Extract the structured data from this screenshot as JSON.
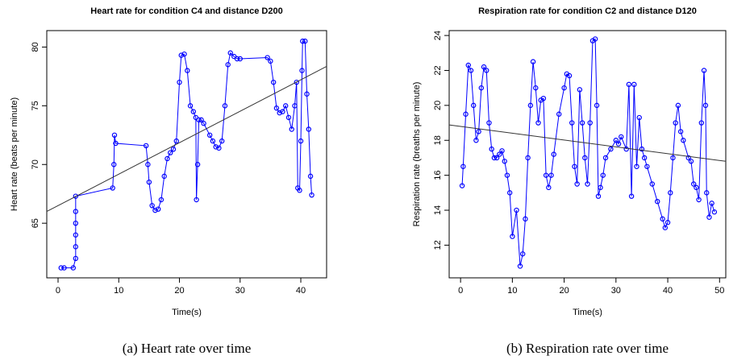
{
  "chart_data": [
    {
      "type": "scatter",
      "title": "Heart rate for condition C4 and distance D200",
      "x_label": "Time(s)",
      "y_label": "Heart rate (beats per minute)",
      "caption": "(a) Heart rate over time",
      "color": "#0000ff",
      "connect": true,
      "x": [
        0.5,
        1,
        2.5,
        2.9,
        2.9,
        2.9,
        2.9,
        2.9,
        2.9,
        9,
        9.2,
        9.3,
        9.5,
        14.5,
        14.8,
        15,
        15.5,
        16,
        16.5,
        17,
        17.5,
        18,
        18.5,
        19,
        19.5,
        20,
        20.3,
        20.8,
        21.3,
        21.8,
        22.3,
        22.7,
        22.8,
        23,
        23.2,
        23.6,
        24,
        25,
        25.5,
        26,
        26.5,
        27,
        27.5,
        28,
        28.4,
        29,
        29.5,
        30,
        34.5,
        35,
        35.5,
        36,
        36.5,
        37,
        37.5,
        38,
        38.5,
        39,
        39.3,
        39.5,
        39.8,
        40,
        40.2,
        40.3,
        40.7,
        41,
        41.3,
        41.6,
        41.8
      ],
      "y": [
        61.2,
        61.2,
        61.2,
        62,
        63,
        64,
        65,
        66,
        67.3,
        68,
        70,
        72.5,
        71.8,
        71.6,
        70,
        68.5,
        66.5,
        66.1,
        66.2,
        67,
        69,
        70.5,
        71,
        71.3,
        72,
        77,
        79.3,
        79.4,
        78,
        75,
        74.5,
        74,
        67,
        70,
        73.8,
        73.8,
        73.5,
        72.5,
        72,
        71.5,
        71.4,
        72,
        75,
        78.5,
        79.5,
        79.2,
        79,
        79,
        79.1,
        78.8,
        77,
        74.8,
        74.4,
        74.5,
        75,
        74,
        73,
        75,
        77,
        68,
        67.8,
        72,
        78,
        80.5,
        80.5,
        76,
        73,
        69,
        67.4
      ],
      "trend": {
        "x": [
          -1.86,
          44.25
        ],
        "y": [
          66.0,
          78.35
        ]
      },
      "xlim": [
        -1.86,
        44.25
      ],
      "ylim": [
        60.35,
        81.4
      ],
      "xticks": [
        0,
        10,
        20,
        30,
        40
      ],
      "yticks": [
        65,
        70,
        75,
        80
      ]
    },
    {
      "type": "scatter",
      "title": "Respiration rate for condition C2 and distance D120",
      "x_label": "Time(s)",
      "y_label": "Respiration rate (breaths per minute)",
      "caption": "(b) Respiration rate over time",
      "color": "#0000ff",
      "connect": true,
      "x": [
        0.3,
        0.5,
        1,
        1.5,
        2,
        2.5,
        3,
        3.5,
        4,
        4.5,
        5,
        5.5,
        6,
        6.5,
        7,
        7.5,
        8,
        8.5,
        9,
        9.5,
        10,
        10.8,
        11.5,
        12,
        12.5,
        13,
        13.5,
        14,
        14.5,
        15,
        15.5,
        16,
        16.5,
        17,
        17.5,
        18,
        19,
        20,
        20.5,
        21,
        21.5,
        22,
        22.5,
        23,
        23.5,
        24,
        24.5,
        25,
        25.5,
        26,
        26.3,
        26.6,
        27,
        27.5,
        28,
        29,
        30,
        30.5,
        31,
        32,
        32.5,
        33,
        33.5,
        34,
        34.5,
        35,
        35.5,
        36,
        37,
        38,
        39,
        39.5,
        40,
        40.5,
        41,
        41.5,
        42,
        42.5,
        43,
        44,
        44.5,
        45,
        45.5,
        46,
        46.5,
        47,
        47.3,
        47.5,
        48,
        48.5,
        49
      ],
      "y": [
        15.4,
        16.5,
        19.5,
        22.3,
        22,
        20,
        18,
        18.5,
        21,
        22.2,
        22,
        19,
        17.5,
        17,
        17,
        17.2,
        17.4,
        16.8,
        16,
        15,
        12.5,
        14,
        10.8,
        11.5,
        13.5,
        17,
        20,
        22.5,
        21,
        19,
        20.3,
        20.4,
        16,
        15.3,
        16,
        17.2,
        19.5,
        21,
        21.8,
        21.7,
        19,
        16.5,
        15.5,
        20.9,
        19,
        17,
        15.5,
        19,
        23.7,
        23.8,
        20,
        14.8,
        15.3,
        16,
        17,
        17.5,
        18,
        17.8,
        18.2,
        17.5,
        21.2,
        14.8,
        21.2,
        16.5,
        19.3,
        17.5,
        17,
        16.5,
        15.5,
        14.5,
        13.5,
        13,
        13.3,
        15,
        17,
        19,
        20,
        18.5,
        18,
        17,
        16.8,
        15.5,
        15.3,
        14.6,
        19,
        22,
        20,
        15,
        13.6,
        14.4,
        13.9
      ],
      "trend": {
        "x": [
          -2.2,
          51.2
        ],
        "y": [
          18.88,
          16.8
        ]
      },
      "xlim": [
        -2.2,
        51.2
      ],
      "ylim": [
        10.13,
        24.28
      ],
      "xticks": [
        0,
        10,
        20,
        30,
        40,
        50
      ],
      "yticks": [
        12,
        14,
        16,
        18,
        20,
        22,
        24
      ]
    }
  ]
}
